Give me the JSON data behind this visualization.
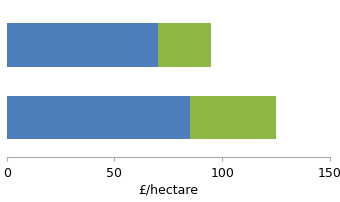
{
  "bars": [
    {
      "blue": 70,
      "green": 25
    },
    {
      "blue": 85,
      "green": 40
    }
  ],
  "blue_color": "#4e7fbc",
  "green_color": "#8db645",
  "xlim": [
    0,
    150
  ],
  "xticks": [
    0,
    50,
    100,
    150
  ],
  "xlabel": "£/hectare",
  "xlabel_fontsize": 9,
  "tick_fontsize": 9,
  "bar_height": 0.6,
  "background_color": "#ffffff",
  "figsize": [
    3.4,
    2.03
  ],
  "dpi": 100,
  "ylim": [
    -0.55,
    1.55
  ]
}
